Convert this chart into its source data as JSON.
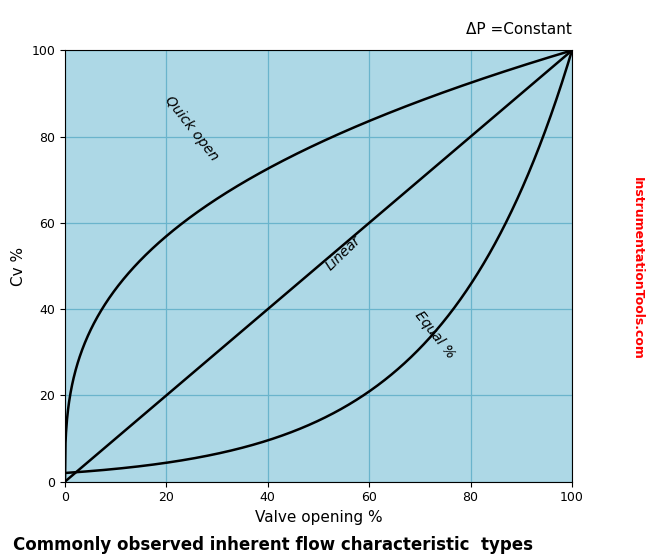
{
  "title": "Commonly observed inherent flow characteristic  types",
  "xlabel": "Valve opening %",
  "ylabel": "Cv %",
  "annotation_top": "ΔP =Constant",
  "watermark": "InstrumentationTools.com",
  "background_color": "#add8e6",
  "line_color": "#000000",
  "grid_color": "#6ab4cc",
  "xlim": [
    0,
    100
  ],
  "ylim": [
    0,
    100
  ],
  "xticks": [
    0,
    20,
    40,
    60,
    80,
    100
  ],
  "yticks": [
    0,
    20,
    40,
    60,
    80,
    100
  ],
  "curve_labels": {
    "quick_open": "Quick open",
    "linear": "Linear",
    "equal_pct": "Equal %"
  },
  "label_positions": {
    "quick_open": [
      25,
      82
    ],
    "linear": [
      55,
      53
    ],
    "equal_pct": [
      73,
      34
    ]
  },
  "label_rotations": {
    "quick_open": -52,
    "linear": 44,
    "equal_pct": -52
  },
  "label_fontsize": 10,
  "axis_fontsize": 11,
  "title_fontsize": 12,
  "annotation_fontsize": 11,
  "watermark_fontsize": 9,
  "linewidth": 1.8
}
